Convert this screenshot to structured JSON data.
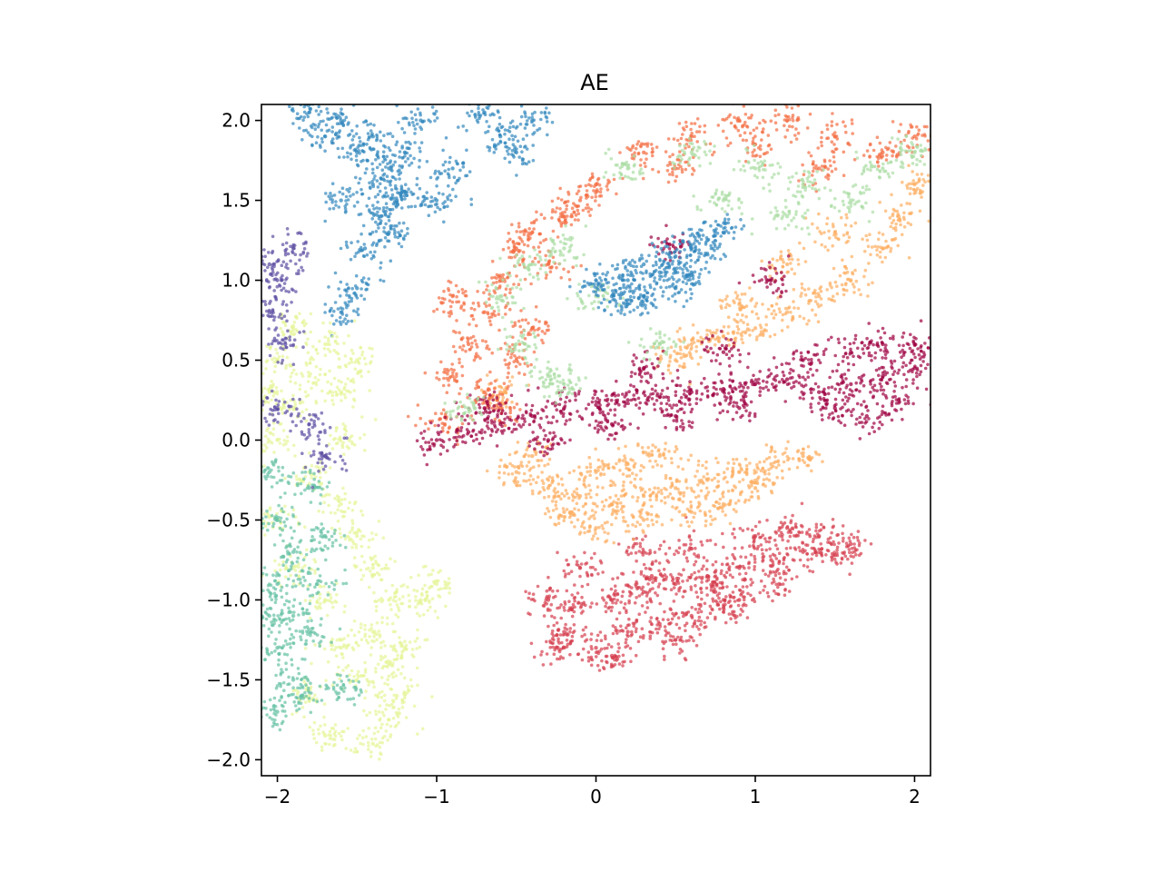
{
  "chart_data": {
    "type": "scatter",
    "title": "AE",
    "xlabel": "",
    "ylabel": "",
    "xlim": [
      -2.1,
      2.1
    ],
    "ylim": [
      -2.1,
      2.1
    ],
    "x_ticks": [
      -2,
      -1,
      0,
      1,
      2
    ],
    "x_tick_labels": [
      "−2",
      "−1",
      "0",
      "1",
      "2"
    ],
    "y_ticks": [
      -2.0,
      -1.5,
      -1.0,
      -0.5,
      0.0,
      0.5,
      1.0,
      1.5,
      2.0
    ],
    "y_tick_labels": [
      "−2.0",
      "−1.5",
      "−1.0",
      "−0.5",
      "0.0",
      "0.5",
      "1.0",
      "1.5",
      "2.0"
    ],
    "grid": false,
    "legend": false,
    "colormap": "Spectral",
    "series": [
      {
        "color": "#d53e4f",
        "points": [
          [
            0.1,
            -1.0
          ],
          [
            0.3,
            -0.95
          ],
          [
            0.5,
            -0.9
          ],
          [
            0.7,
            -0.85
          ],
          [
            0.9,
            -0.8
          ],
          [
            1.1,
            -0.75
          ],
          [
            1.3,
            -0.7
          ],
          [
            1.5,
            -0.72
          ],
          [
            0.2,
            -1.2
          ],
          [
            0.4,
            -1.15
          ],
          [
            0.6,
            -1.1
          ],
          [
            0.8,
            -1.05
          ],
          [
            0.0,
            -1.3
          ],
          [
            -0.2,
            -1.2
          ],
          [
            -0.3,
            -1.0
          ],
          [
            -0.1,
            -0.8
          ],
          [
            0.3,
            -0.7
          ],
          [
            0.6,
            -0.68
          ],
          [
            1.0,
            -0.6
          ],
          [
            1.2,
            -0.55
          ],
          [
            0.9,
            -1.0
          ],
          [
            0.5,
            -1.25
          ],
          [
            0.1,
            -1.35
          ],
          [
            -0.15,
            -1.05
          ],
          [
            1.4,
            -0.6
          ],
          [
            1.6,
            -0.65
          ],
          [
            0.75,
            -0.95
          ],
          [
            0.35,
            -0.85
          ],
          [
            -0.25,
            -1.3
          ],
          [
            1.15,
            -0.9
          ]
        ]
      },
      {
        "color": "#fdae61",
        "points": [
          [
            -0.5,
            -0.2
          ],
          [
            -0.3,
            -0.3
          ],
          [
            -0.1,
            -0.35
          ],
          [
            0.1,
            -0.4
          ],
          [
            0.3,
            -0.35
          ],
          [
            0.5,
            -0.3
          ],
          [
            0.7,
            -0.25
          ],
          [
            0.9,
            -0.2
          ],
          [
            1.1,
            -0.15
          ],
          [
            1.3,
            -0.1
          ],
          [
            0.0,
            -0.2
          ],
          [
            0.2,
            -0.15
          ],
          [
            0.4,
            -0.1
          ],
          [
            -0.2,
            -0.45
          ],
          [
            0.0,
            -0.55
          ],
          [
            0.3,
            -0.5
          ],
          [
            0.6,
            -0.45
          ],
          [
            0.8,
            -0.4
          ],
          [
            1.0,
            -0.3
          ],
          [
            -0.4,
            -0.1
          ],
          [
            0.6,
            0.6
          ],
          [
            0.8,
            0.65
          ],
          [
            1.0,
            0.7
          ],
          [
            1.2,
            0.8
          ],
          [
            1.4,
            0.9
          ],
          [
            1.6,
            1.0
          ],
          [
            1.8,
            1.2
          ],
          [
            1.9,
            1.4
          ],
          [
            2.0,
            1.6
          ],
          [
            1.5,
            1.3
          ],
          [
            1.2,
            1.1
          ],
          [
            0.9,
            0.85
          ],
          [
            -0.6,
            0.3
          ],
          [
            0.5,
            0.5
          ]
        ]
      },
      {
        "color": "#f46d43",
        "points": [
          [
            -0.7,
            0.8
          ],
          [
            -0.6,
            1.0
          ],
          [
            -0.5,
            1.2
          ],
          [
            -0.4,
            1.3
          ],
          [
            -0.3,
            1.1
          ],
          [
            -0.8,
            0.6
          ],
          [
            -0.9,
            0.4
          ],
          [
            -0.7,
            0.3
          ],
          [
            -0.5,
            0.5
          ],
          [
            -0.2,
            1.4
          ],
          [
            0.0,
            1.6
          ],
          [
            0.3,
            1.8
          ],
          [
            0.6,
            1.9
          ],
          [
            0.9,
            2.0
          ],
          [
            1.2,
            2.0
          ],
          [
            1.5,
            1.9
          ],
          [
            1.8,
            1.8
          ],
          [
            2.0,
            1.9
          ],
          [
            -0.9,
            0.9
          ],
          [
            -0.6,
            0.2
          ],
          [
            -0.4,
            0.7
          ],
          [
            -0.1,
            1.5
          ],
          [
            0.5,
            1.7
          ],
          [
            1.0,
            1.85
          ],
          [
            1.4,
            1.7
          ],
          [
            -0.95,
            0.1
          ]
        ]
      },
      {
        "color": "#9e0142",
        "points": [
          [
            -1.0,
            0.0
          ],
          [
            -0.8,
            0.05
          ],
          [
            -0.6,
            0.1
          ],
          [
            -0.4,
            0.15
          ],
          [
            -0.2,
            0.2
          ],
          [
            0.0,
            0.22
          ],
          [
            0.2,
            0.25
          ],
          [
            0.4,
            0.27
          ],
          [
            0.6,
            0.3
          ],
          [
            0.8,
            0.32
          ],
          [
            1.0,
            0.35
          ],
          [
            1.2,
            0.38
          ],
          [
            1.4,
            0.3
          ],
          [
            1.6,
            0.35
          ],
          [
            1.8,
            0.4
          ],
          [
            2.0,
            0.45
          ],
          [
            1.5,
            0.2
          ],
          [
            1.7,
            0.15
          ],
          [
            1.9,
            0.25
          ],
          [
            2.0,
            0.6
          ],
          [
            1.8,
            0.6
          ],
          [
            1.6,
            0.55
          ],
          [
            -0.7,
            0.2
          ],
          [
            -0.3,
            0.0
          ],
          [
            0.1,
            0.1
          ],
          [
            0.5,
            0.15
          ],
          [
            0.9,
            0.2
          ],
          [
            1.3,
            0.5
          ],
          [
            0.3,
            0.45
          ],
          [
            0.8,
            0.55
          ],
          [
            1.1,
            1.0
          ],
          [
            0.5,
            1.2
          ]
        ]
      },
      {
        "color": "#abdda4",
        "points": [
          [
            -0.6,
            0.9
          ],
          [
            -0.4,
            1.1
          ],
          [
            -0.2,
            1.2
          ],
          [
            0.0,
            0.9
          ],
          [
            -0.5,
            0.6
          ],
          [
            -0.3,
            0.4
          ],
          [
            0.2,
            1.7
          ],
          [
            0.6,
            1.8
          ],
          [
            1.0,
            1.7
          ],
          [
            1.3,
            1.6
          ],
          [
            1.6,
            1.5
          ],
          [
            1.8,
            1.7
          ],
          [
            2.0,
            1.8
          ],
          [
            1.2,
            1.4
          ],
          [
            0.8,
            1.5
          ],
          [
            -0.8,
            0.2
          ],
          [
            -0.2,
            0.35
          ],
          [
            0.4,
            0.6
          ]
        ]
      },
      {
        "color": "#3288bd",
        "points": [
          [
            0.1,
            0.9
          ],
          [
            0.2,
            1.0
          ],
          [
            0.3,
            1.1
          ],
          [
            0.4,
            1.05
          ],
          [
            0.5,
            1.15
          ],
          [
            0.6,
            1.2
          ],
          [
            0.7,
            1.25
          ],
          [
            0.8,
            1.3
          ],
          [
            0.3,
            0.9
          ],
          [
            0.5,
            0.95
          ],
          [
            0.2,
            0.85
          ],
          [
            0.6,
            1.05
          ],
          [
            0.0,
            1.0
          ],
          [
            -1.4,
            1.6
          ],
          [
            -1.3,
            1.7
          ],
          [
            -1.2,
            1.55
          ],
          [
            -1.35,
            1.4
          ],
          [
            -1.5,
            1.8
          ],
          [
            -1.6,
            2.0
          ],
          [
            -1.4,
            1.9
          ],
          [
            -1.2,
            1.8
          ],
          [
            -1.3,
            1.3
          ],
          [
            -1.45,
            1.2
          ],
          [
            -1.6,
            1.5
          ],
          [
            -1.7,
            1.9
          ],
          [
            -1.8,
            2.05
          ],
          [
            -1.1,
            2.0
          ],
          [
            -0.6,
            1.9
          ],
          [
            -0.5,
            1.8
          ],
          [
            -0.4,
            2.0
          ],
          [
            -0.7,
            2.05
          ],
          [
            -0.9,
            1.7
          ],
          [
            -1.0,
            1.5
          ],
          [
            -1.5,
            0.95
          ],
          [
            -1.6,
            0.8
          ],
          [
            -1.25,
            1.5
          ]
        ]
      },
      {
        "color": "#e6f598",
        "points": [
          [
            -2.0,
            0.5
          ],
          [
            -1.8,
            0.4
          ],
          [
            -1.6,
            0.3
          ],
          [
            -1.9,
            0.2
          ],
          [
            -1.7,
            0.6
          ],
          [
            -1.5,
            0.5
          ],
          [
            -2.0,
            0.0
          ],
          [
            -1.8,
            -0.2
          ],
          [
            -1.6,
            -0.4
          ],
          [
            -1.5,
            -0.6
          ],
          [
            -1.4,
            -0.8
          ],
          [
            -1.3,
            -1.0
          ],
          [
            -1.4,
            -1.2
          ],
          [
            -1.3,
            -1.4
          ],
          [
            -1.25,
            -1.6
          ],
          [
            -1.3,
            -1.75
          ],
          [
            -1.5,
            -1.5
          ],
          [
            -1.6,
            -1.3
          ],
          [
            -1.7,
            -1.0
          ],
          [
            -1.9,
            -0.8
          ],
          [
            -2.0,
            -0.5
          ],
          [
            -1.8,
            -1.6
          ],
          [
            -1.7,
            -1.85
          ],
          [
            -1.4,
            -1.9
          ],
          [
            -1.2,
            -1.3
          ],
          [
            -1.1,
            -1.0
          ],
          [
            -1.0,
            -0.9
          ],
          [
            -1.9,
            0.7
          ],
          [
            -2.05,
            0.3
          ],
          [
            -1.55,
            0.0
          ]
        ]
      },
      {
        "color": "#66c2a5",
        "points": [
          [
            -2.0,
            -0.5
          ],
          [
            -1.9,
            -0.7
          ],
          [
            -2.0,
            -0.9
          ],
          [
            -1.9,
            -1.1
          ],
          [
            -2.0,
            -1.3
          ],
          [
            -1.9,
            -1.5
          ],
          [
            -2.0,
            -1.7
          ],
          [
            -1.8,
            -1.2
          ],
          [
            -1.7,
            -0.6
          ],
          [
            -1.8,
            -0.3
          ],
          [
            -2.05,
            -0.2
          ],
          [
            -1.85,
            -1.6
          ],
          [
            -2.05,
            -1.1
          ],
          [
            -1.75,
            -0.9
          ],
          [
            -1.6,
            -1.55
          ]
        ]
      },
      {
        "color": "#5e4fa2",
        "points": [
          [
            -2.0,
            1.0
          ],
          [
            -1.9,
            1.2
          ],
          [
            -2.05,
            0.8
          ],
          [
            -1.95,
            0.6
          ],
          [
            -1.8,
            0.1
          ],
          [
            -2.0,
            0.2
          ],
          [
            -1.7,
            -0.1
          ],
          [
            -2.05,
            1.1
          ]
        ]
      }
    ]
  }
}
